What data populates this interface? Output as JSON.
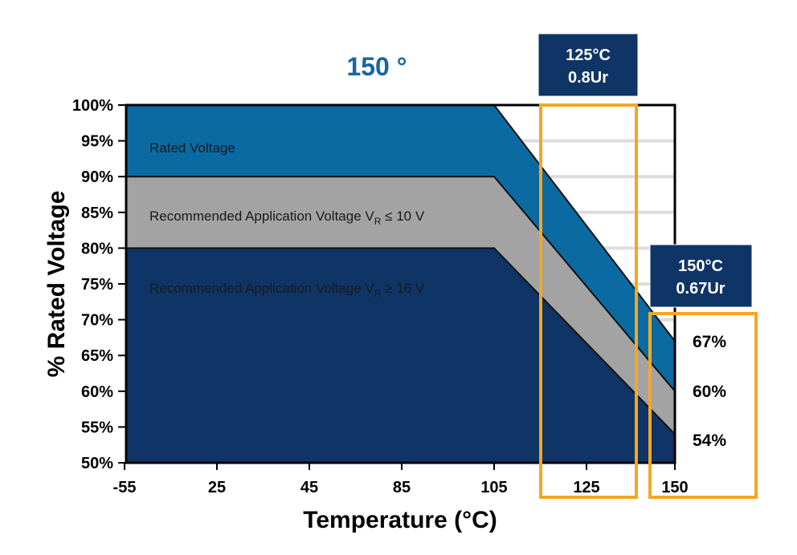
{
  "chart_data": {
    "type": "area",
    "title": "150 °",
    "xlabel": "Temperature (°C)",
    "ylabel": "% Rated Voltage",
    "x_tick_labels": [
      "-55",
      "25",
      "45",
      "85",
      "105",
      "125",
      "150"
    ],
    "y_tick_labels": [
      "100%",
      "95%",
      "90%",
      "85%",
      "80%",
      "75%",
      "70%",
      "65%",
      "60%",
      "55%",
      "50%"
    ],
    "ylim": [
      50,
      100
    ],
    "grid": "horizontal",
    "series": [
      {
        "name": "Rated Voltage",
        "color": "#0b6aa2",
        "points": [
          [
            "-55",
            100
          ],
          [
            "105",
            100
          ],
          [
            "150",
            67
          ]
        ]
      },
      {
        "name": "Recommended Application Voltage V_R ≤ 10 V",
        "color": "#a3a3a3",
        "points": [
          [
            "-55",
            90
          ],
          [
            "105",
            90
          ],
          [
            "150",
            60
          ]
        ]
      },
      {
        "name": "Recommended Application Voltage V_R ≥ 16 V",
        "color": "#0f3566",
        "points": [
          [
            "-55",
            80
          ],
          [
            "105",
            80
          ],
          [
            "150",
            54
          ]
        ]
      }
    ],
    "band_labels": {
      "rated": "Rated Voltage",
      "low_prefix": "Recommended Application Voltage V",
      "low_sub": "R",
      "low_suffix": " ≤ 10 V",
      "high_prefix": "Recommended Application Voltage V",
      "high_sub": "R",
      "high_suffix": " ≥ 16 V"
    },
    "callouts": [
      {
        "line1": "125°C",
        "line2": "0.8Ur"
      },
      {
        "line1": "150°C",
        "line2": "0.67Ur"
      }
    ],
    "end_values": [
      "67%",
      "60%",
      "54%"
    ],
    "colors": {
      "title": "#1766a0",
      "callout_bg": "#0f3566",
      "highlight": "#f5a623",
      "grid": "#dddddd"
    }
  }
}
